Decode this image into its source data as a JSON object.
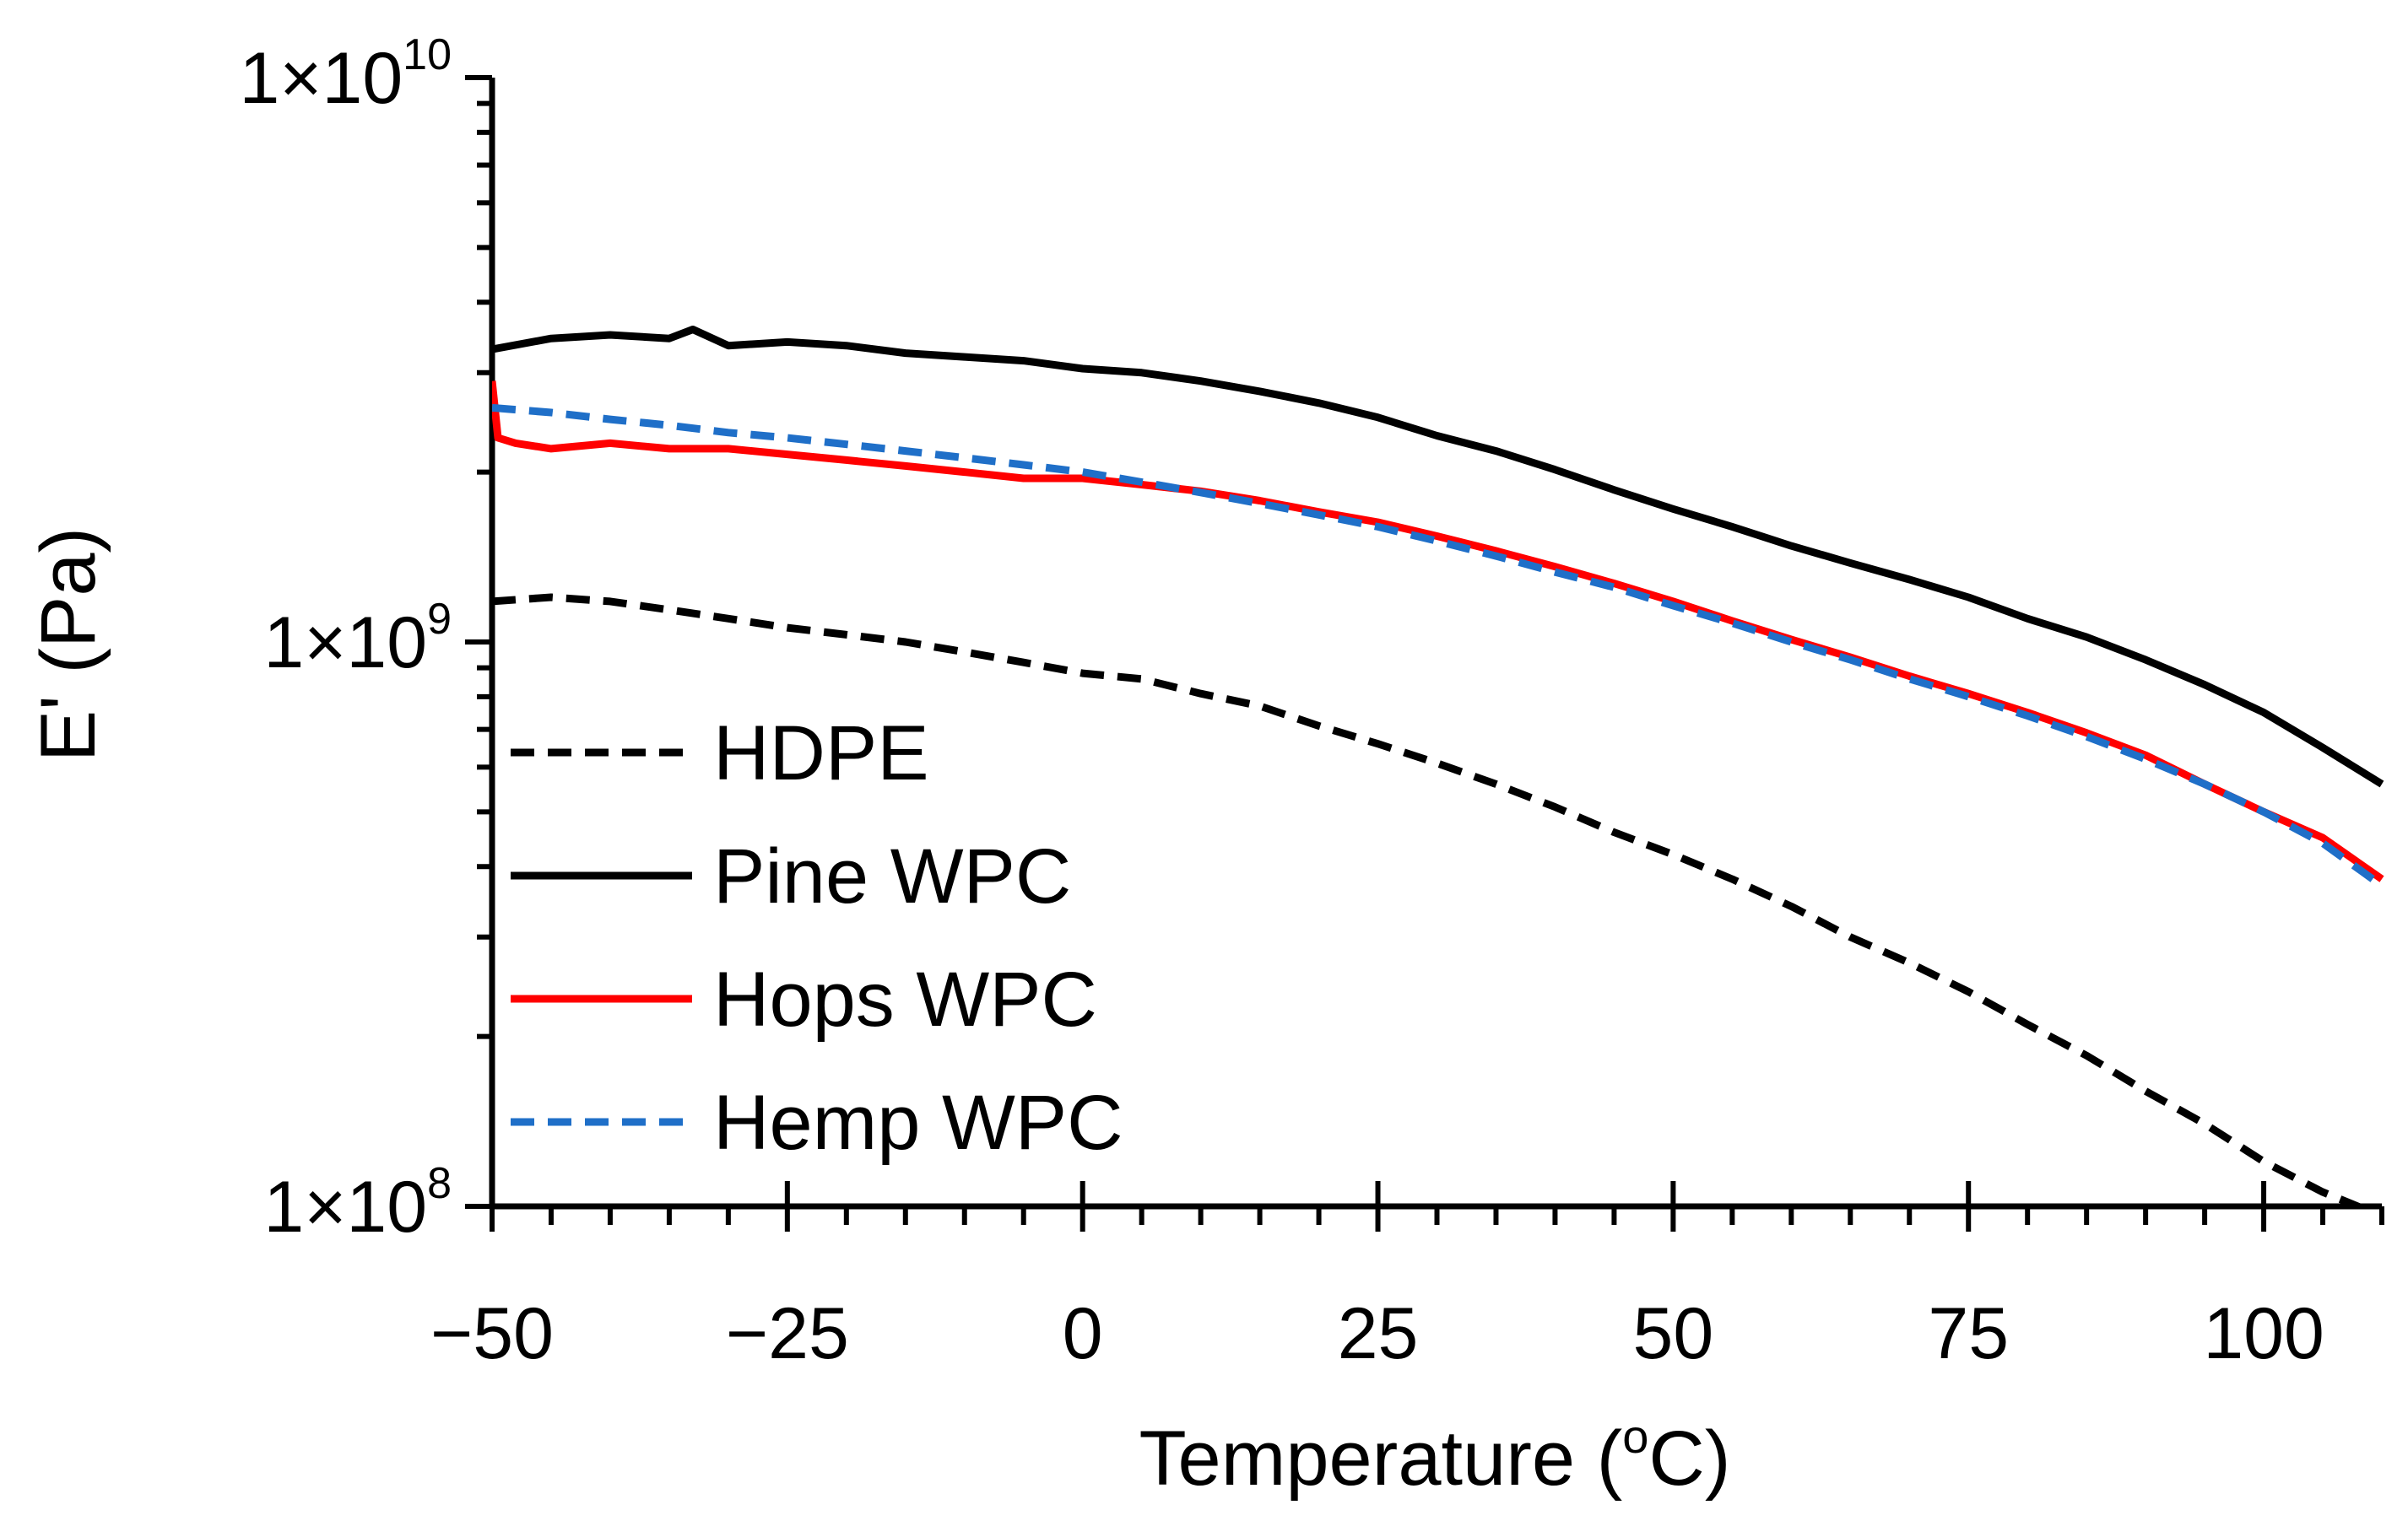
{
  "chart_data": {
    "type": "line",
    "title": "",
    "xlabel": "Temperature (",
    "xlabel_sup": "o",
    "xlabel_end": "C)",
    "ylabel": "E' (Pa)",
    "xlim": [
      -50,
      110
    ],
    "ylim": [
      100000000,
      10000000000
    ],
    "y_scale": "log",
    "x_ticks": [
      -50,
      -25,
      0,
      25,
      50,
      75,
      100
    ],
    "x_tick_labels": [
      "−50",
      "−25",
      "0",
      "25",
      "50",
      "75",
      "100"
    ],
    "y_ticks": [
      {
        "value": 10000000000,
        "base": "1×10",
        "exp": "10"
      },
      {
        "value": 1000000000,
        "base": "1×10",
        "exp": "9"
      },
      {
        "value": 100000000,
        "base": "1×10",
        "exp": "8"
      }
    ],
    "legend_position": "lower-left",
    "grid": false,
    "series": [
      {
        "name": "HDPE",
        "color": "#000000",
        "dash": "dashed",
        "x": [
          -50,
          -45,
          -40,
          -35,
          -30,
          -25,
          -20,
          -15,
          -10,
          -5,
          0,
          5,
          10,
          15,
          20,
          25,
          30,
          35,
          40,
          45,
          50,
          55,
          60,
          65,
          70,
          75,
          80,
          85,
          90,
          95,
          100,
          105,
          109
        ],
        "y": [
          1180000000,
          1200000000,
          1180000000,
          1140000000,
          1100000000,
          1060000000,
          1030000000,
          1000000000,
          960000000,
          920000000,
          880000000,
          860000000,
          810000000,
          770000000,
          710000000,
          660000000,
          610000000,
          560000000,
          510000000,
          460000000,
          420000000,
          380000000,
          340000000,
          300000000,
          270000000,
          240000000,
          210000000,
          185000000,
          160000000,
          140000000,
          120000000,
          106000000,
          98000000
        ]
      },
      {
        "name": "Pine WPC",
        "color": "#000000",
        "dash": "solid",
        "x": [
          -50,
          -45,
          -40,
          -35,
          -33,
          -30,
          -25,
          -20,
          -15,
          -10,
          -5,
          0,
          5,
          10,
          15,
          20,
          25,
          30,
          35,
          40,
          45,
          50,
          55,
          60,
          65,
          70,
          75,
          80,
          85,
          90,
          95,
          100,
          105,
          110
        ],
        "y": [
          3300000000,
          3450000000,
          3500000000,
          3450000000,
          3580000000,
          3350000000,
          3400000000,
          3350000000,
          3250000000,
          3200000000,
          3150000000,
          3050000000,
          3000000000,
          2900000000,
          2780000000,
          2650000000,
          2500000000,
          2320000000,
          2180000000,
          2020000000,
          1860000000,
          1720000000,
          1600000000,
          1480000000,
          1380000000,
          1290000000,
          1200000000,
          1100000000,
          1020000000,
          930000000,
          840000000,
          750000000,
          650000000,
          560000000
        ]
      },
      {
        "name": "Hops WPC",
        "color": "#ff0000",
        "dash": "solid",
        "x": [
          -50,
          -49.5,
          -48,
          -45,
          -40,
          -35,
          -30,
          -25,
          -20,
          -15,
          -10,
          -5,
          0,
          5,
          10,
          15,
          20,
          25,
          30,
          35,
          40,
          45,
          50,
          55,
          60,
          65,
          70,
          75,
          80,
          85,
          90,
          95,
          100,
          105,
          110
        ],
        "y": [
          2900000000,
          2300000000,
          2250000000,
          2200000000,
          2250000000,
          2200000000,
          2200000000,
          2150000000,
          2100000000,
          2050000000,
          2000000000,
          1950000000,
          1950000000,
          1900000000,
          1850000000,
          1780000000,
          1700000000,
          1630000000,
          1540000000,
          1450000000,
          1360000000,
          1270000000,
          1180000000,
          1090000000,
          1010000000,
          940000000,
          870000000,
          810000000,
          750000000,
          690000000,
          630000000,
          560000000,
          500000000,
          450000000,
          380000000
        ]
      },
      {
        "name": "Hemp WPC",
        "color": "#1f6fc8",
        "dash": "dashed",
        "x": [
          -50,
          -45,
          -40,
          -35,
          -30,
          -25,
          -20,
          -15,
          -10,
          -5,
          0,
          5,
          10,
          15,
          20,
          25,
          30,
          35,
          40,
          45,
          50,
          55,
          60,
          65,
          70,
          75,
          80,
          85,
          90,
          95,
          100,
          105,
          110
        ],
        "y": [
          2600000000,
          2550000000,
          2480000000,
          2420000000,
          2350000000,
          2300000000,
          2240000000,
          2180000000,
          2120000000,
          2060000000,
          2000000000,
          1920000000,
          1840000000,
          1760000000,
          1680000000,
          1600000000,
          1510000000,
          1420000000,
          1330000000,
          1250000000,
          1160000000,
          1080000000,
          1000000000,
          930000000,
          860000000,
          800000000,
          740000000,
          680000000,
          620000000,
          560000000,
          500000000,
          440000000,
          370000000
        ]
      }
    ]
  }
}
